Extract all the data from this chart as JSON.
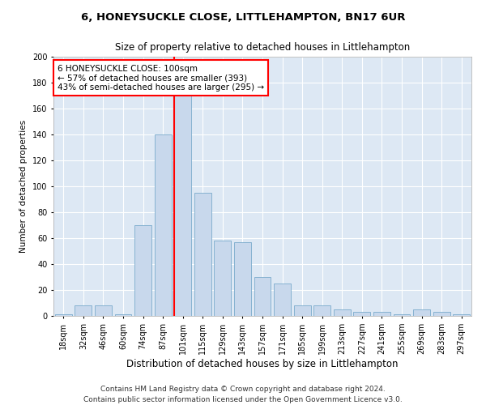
{
  "title": "6, HONEYSUCKLE CLOSE, LITTLEHAMPTON, BN17 6UR",
  "subtitle": "Size of property relative to detached houses in Littlehampton",
  "xlabel": "Distribution of detached houses by size in Littlehampton",
  "ylabel": "Number of detached properties",
  "categories": [
    "18sqm",
    "32sqm",
    "46sqm",
    "60sqm",
    "74sqm",
    "87sqm",
    "101sqm",
    "115sqm",
    "129sqm",
    "143sqm",
    "157sqm",
    "171sqm",
    "185sqm",
    "199sqm",
    "213sqm",
    "227sqm",
    "241sqm",
    "255sqm",
    "269sqm",
    "283sqm",
    "297sqm"
  ],
  "values": [
    1,
    8,
    8,
    1,
    70,
    140,
    190,
    95,
    58,
    57,
    30,
    25,
    8,
    8,
    5,
    3,
    3,
    1,
    5,
    3,
    1
  ],
  "bar_color": "#c8d8ec",
  "bar_edgecolor": "#7aabcc",
  "redline_index": 6,
  "redline_label": "6 HONEYSUCKLE CLOSE: 100sqm",
  "annotation_line1": "← 57% of detached houses are smaller (393)",
  "annotation_line2": "43% of semi-detached houses are larger (295) →",
  "ylim": [
    0,
    200
  ],
  "yticks": [
    0,
    20,
    40,
    60,
    80,
    100,
    120,
    140,
    160,
    180,
    200
  ],
  "footnote1": "Contains HM Land Registry data © Crown copyright and database right 2024.",
  "footnote2": "Contains public sector information licensed under the Open Government Licence v3.0.",
  "bg_color": "#ffffff",
  "plot_bg_color": "#dde8f4",
  "title_fontsize": 9.5,
  "subtitle_fontsize": 8.5,
  "xlabel_fontsize": 8.5,
  "ylabel_fontsize": 7.5,
  "tick_fontsize": 7,
  "footnote_fontsize": 6.5,
  "annotation_fontsize": 7.5
}
